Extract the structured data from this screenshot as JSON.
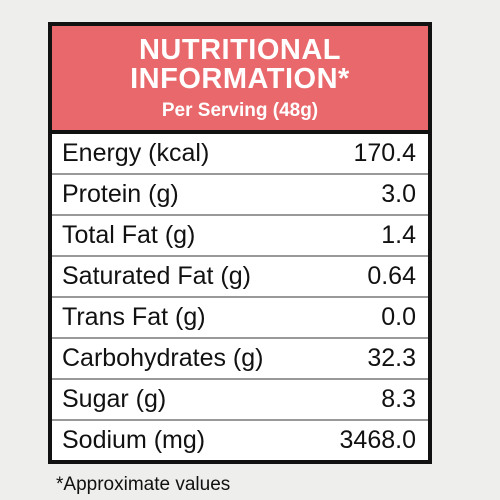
{
  "header": {
    "title": [
      "NUTRITIONAL",
      "INFORMATION*"
    ],
    "subtitle": "Per Serving (48g)"
  },
  "table": {
    "rows": [
      [
        "Energy (kcal)",
        "170.4"
      ],
      [
        "Protein (g)",
        "3.0"
      ],
      [
        "Total Fat (g)",
        "1.4"
      ],
      [
        "Saturated Fat (g)",
        "0.64"
      ],
      [
        "Trans Fat (g)",
        "0.0"
      ],
      [
        "Carbohydrates (g)",
        "32.3"
      ],
      [
        "Sugar (g)",
        "8.3"
      ],
      [
        "Sodium (mg)",
        "3468.0"
      ]
    ]
  },
  "footnote": "*Approximate values"
}
